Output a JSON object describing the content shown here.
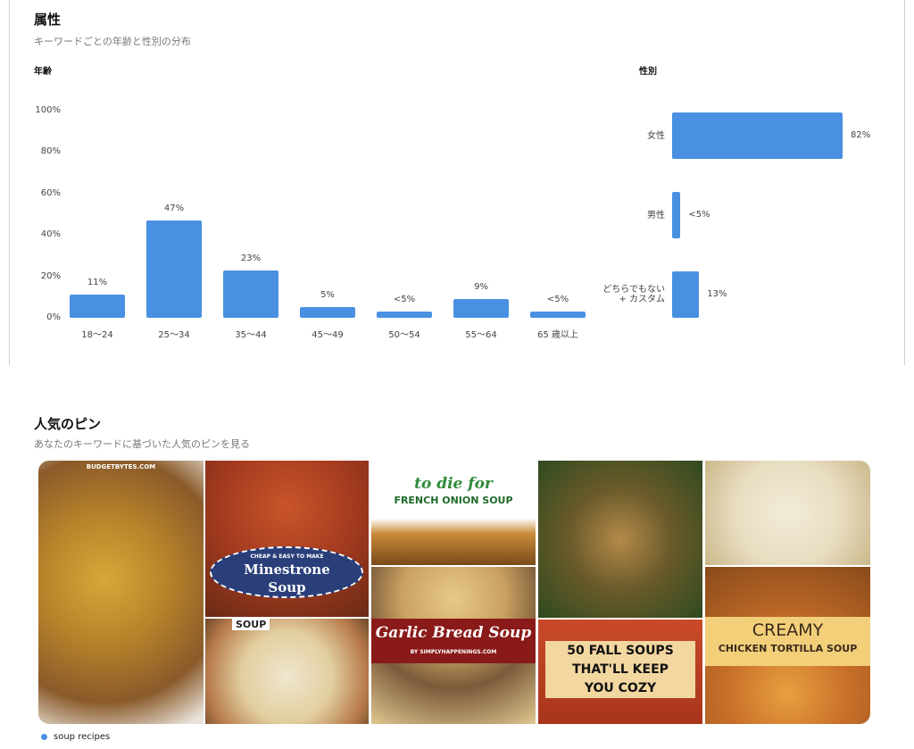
{
  "attributes": {
    "title": "属性",
    "subtitle": "キーワードごとの年齢と性別の分布",
    "age_label": "年齢",
    "gender_label": "性別"
  },
  "chart_data": [
    {
      "type": "bar",
      "title": "年齢",
      "categories": [
        "18〜24",
        "25〜34",
        "35〜44",
        "45〜49",
        "50〜54",
        "55〜64",
        "65 歳以上"
      ],
      "values": [
        11,
        47,
        23,
        5,
        3,
        9,
        3
      ],
      "data_labels": [
        "11%",
        "47%",
        "23%",
        "5%",
        "<5%",
        "9%",
        "<5%"
      ],
      "yticks": [
        "0%",
        "20%",
        "40%",
        "60%",
        "80%",
        "100%"
      ],
      "ylim": [
        0,
        100
      ],
      "color": "#4a90e2"
    },
    {
      "type": "bar",
      "orientation": "horizontal",
      "title": "性別",
      "categories": [
        "女性",
        "男性",
        "どちらでもない + カスタム"
      ],
      "category_lines": [
        [
          "女性"
        ],
        [
          "男性"
        ],
        [
          "どちらでもない",
          "+ カスタム"
        ]
      ],
      "values": [
        82,
        4,
        13
      ],
      "data_labels": [
        "82%",
        "<5%",
        "13%"
      ],
      "xlim": [
        0,
        100
      ],
      "color": "#4a90e2"
    }
  ],
  "popular_pins": {
    "title": "人気のピン",
    "subtitle": "あなたのキーワードに基づいた人気のピンを見る",
    "pins": {
      "p1": {
        "text": "BUDGETBYTES.COM"
      },
      "p2": {
        "tag": "CHEAP & EASY TO MAKE",
        "title": "Minestrone Soup"
      },
      "p3": {
        "text": "SOUP"
      },
      "p4": {
        "tag": "to die for",
        "title": "FRENCH ONION SOUP"
      },
      "p5": {
        "title": "Garlic Bread Soup",
        "credit": "BY SIMPLYHAPPENINGS.COM"
      },
      "p7": {
        "line1": "50 FALL SOUPS",
        "line2": "THAT'LL KEEP",
        "line3": "YOU COZY"
      },
      "p9": {
        "line1": "CREAMY",
        "line2": "CHICKEN TORTILLA SOUP"
      }
    },
    "legend": "soup recipes"
  }
}
